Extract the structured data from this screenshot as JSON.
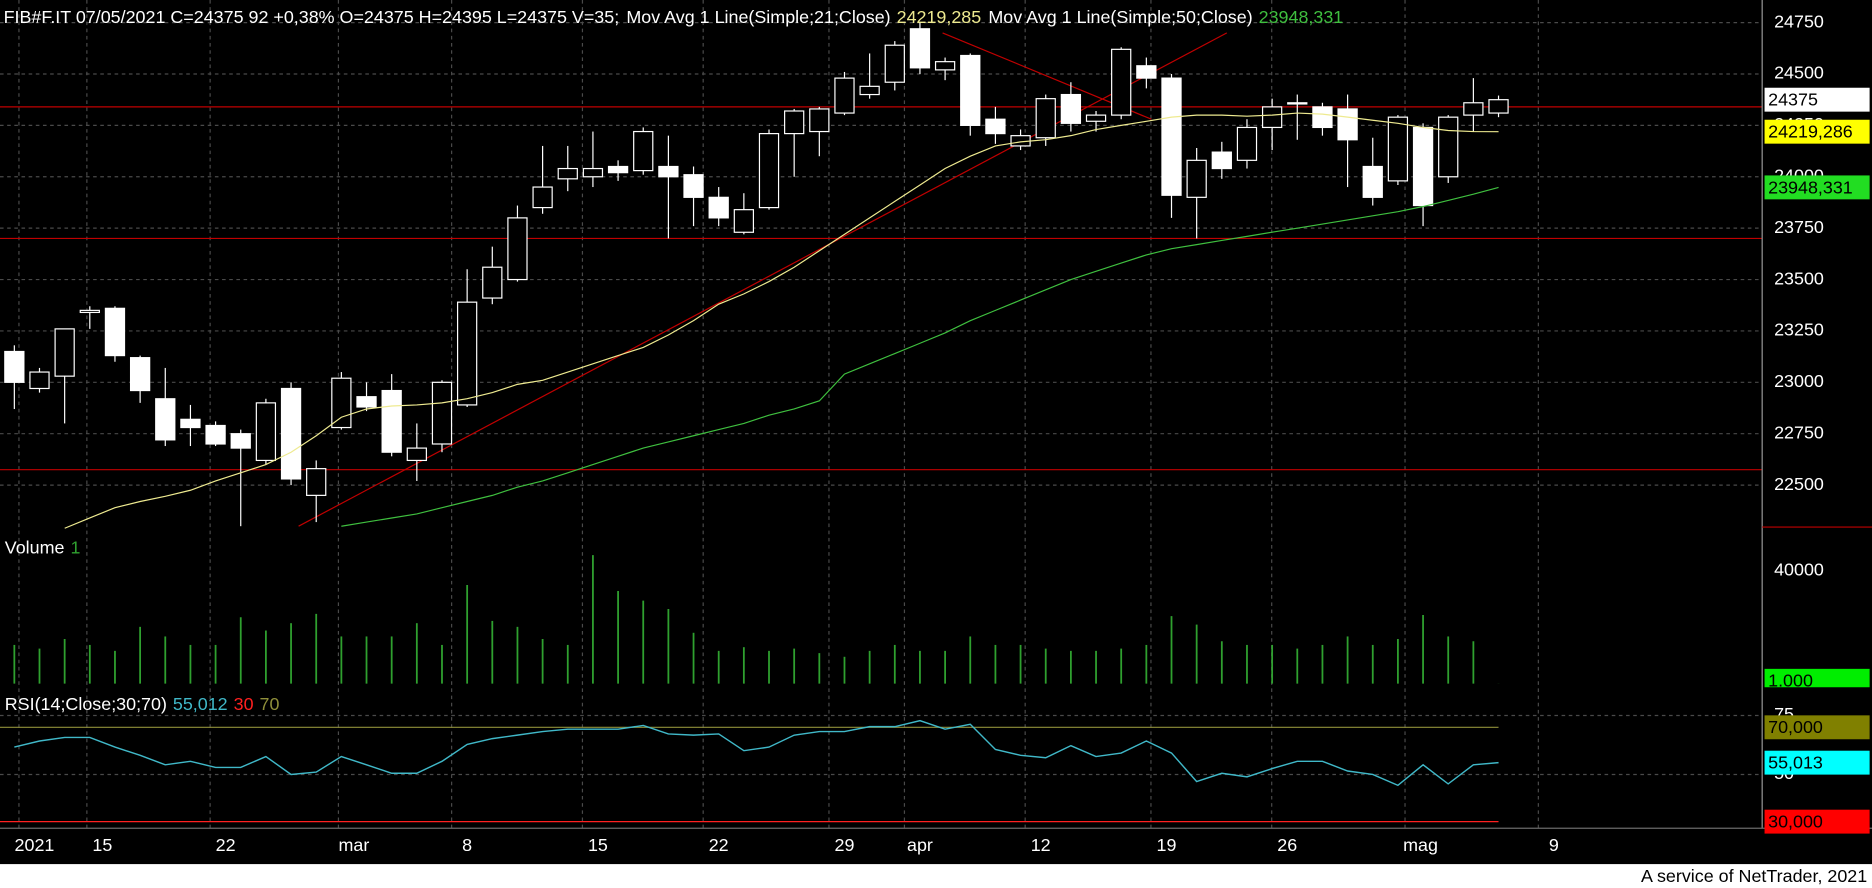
{
  "chart_data": {
    "type": "candlestick",
    "title": "FIB#F.IT 07/05/2021 C=24375 92 +0,38% O=24375 H=24395 L=24375 V=35;",
    "footer": "A service of NetTrader, 2021",
    "x": [
      0,
      1,
      2,
      3,
      4,
      5,
      6,
      7,
      8,
      9,
      10,
      11,
      12,
      13,
      14,
      15,
      16,
      17,
      18,
      19,
      20,
      21,
      22,
      23,
      24,
      25,
      26,
      27,
      28,
      29,
      30,
      31,
      32,
      33,
      34,
      35,
      36,
      37,
      38,
      39,
      40,
      41,
      42,
      43,
      44,
      45,
      46,
      47,
      48,
      49,
      50,
      51,
      52,
      53,
      54,
      55,
      56,
      57,
      58,
      59
    ],
    "open": [
      23150,
      22970,
      23030,
      23340,
      23360,
      23120,
      22920,
      22820,
      22790,
      22750,
      22620,
      22970,
      22450,
      22780,
      22930,
      22960,
      22620,
      22700,
      22890,
      23410,
      23500,
      23850,
      23990,
      24000,
      24050,
      24030,
      24050,
      24010,
      23900,
      23730,
      23850,
      24210,
      24220,
      24310,
      24400,
      24460,
      24720,
      24520,
      24590,
      24280,
      24150,
      24190,
      24400,
      24270,
      24300,
      24540,
      24480,
      23900,
      24120,
      24080,
      24240,
      24360,
      24340,
      24330,
      24050,
      23980,
      24240,
      24000,
      24300,
      24310
    ],
    "high": [
      23180,
      23070,
      23260,
      23370,
      23370,
      23130,
      23070,
      22890,
      22810,
      22770,
      22920,
      23000,
      22620,
      23050,
      23000,
      23040,
      22800,
      23010,
      23550,
      23660,
      23860,
      24150,
      24150,
      24220,
      24080,
      24240,
      24200,
      24050,
      23950,
      23920,
      24230,
      24330,
      24340,
      24510,
      24600,
      24660,
      24750,
      24580,
      24600,
      24340,
      24230,
      24400,
      24460,
      24320,
      24630,
      24580,
      24500,
      24140,
      24170,
      24280,
      24380,
      24400,
      24360,
      24400,
      24190,
      24300,
      24260,
      24300,
      24480,
      24395
    ],
    "low": [
      22870,
      22950,
      22800,
      23260,
      23100,
      22900,
      22690,
      22690,
      22690,
      22300,
      22600,
      22500,
      22320,
      22770,
      22860,
      22640,
      22520,
      22660,
      22880,
      23380,
      23490,
      23820,
      23930,
      23950,
      23980,
      24010,
      23700,
      23760,
      23760,
      23720,
      23840,
      24000,
      24100,
      24300,
      24380,
      24420,
      24500,
      24470,
      24200,
      24160,
      24130,
      24150,
      24220,
      24220,
      24280,
      24430,
      23800,
      23700,
      23990,
      24040,
      24130,
      24180,
      24200,
      23950,
      23860,
      23960,
      23760,
      23970,
      24220,
      24290
    ],
    "close": [
      23000,
      23050,
      23260,
      23350,
      23130,
      22960,
      22720,
      22780,
      22700,
      22680,
      22900,
      22530,
      22580,
      23020,
      22880,
      22660,
      22680,
      23000,
      23390,
      23560,
      23800,
      23950,
      24040,
      24040,
      24020,
      24220,
      24000,
      23900,
      23800,
      23840,
      24210,
      24320,
      24330,
      24480,
      24440,
      24640,
      24530,
      24560,
      24250,
      24210,
      24200,
      24380,
      24260,
      24300,
      24620,
      24480,
      23910,
      24080,
      24040,
      24240,
      24340,
      24360,
      24240,
      24180,
      23900,
      24290,
      23860,
      24290,
      24360,
      24375
    ],
    "color": "#ffffff",
    "xlim": [
      -0.57,
      69.48
    ],
    "xticks": [
      {
        "value": 0.8,
        "label": "2021"
      },
      {
        "value": 3.5,
        "label": "15"
      },
      {
        "value": 8.4,
        "label": "22"
      },
      {
        "value": 13.5,
        "label": "mar"
      },
      {
        "value": 18,
        "label": "8"
      },
      {
        "value": 23.2,
        "label": "15"
      },
      {
        "value": 28,
        "label": "22"
      },
      {
        "value": 33,
        "label": "29"
      },
      {
        "value": 36,
        "label": "apr"
      },
      {
        "value": 40.8,
        "label": "12"
      },
      {
        "value": 45.8,
        "label": "19"
      },
      {
        "value": 50.6,
        "label": "26"
      },
      {
        "value": 55.9,
        "label": "mag"
      },
      {
        "value": 61.2,
        "label": "9"
      }
    ],
    "ylim": [
      22290,
      24860
    ],
    "yticks": [
      22500,
      22750,
      23000,
      23250,
      23500,
      23750,
      24000,
      24250,
      24500,
      24750
    ],
    "grid": true,
    "series": [
      {
        "name": "Mov Avg 1 Line(Simple;21;Close)",
        "color": "#eeea90",
        "last_label": "24219,285",
        "values": [
          null,
          null,
          22290,
          22340,
          22390,
          22420,
          22445,
          22475,
          22520,
          22560,
          22600,
          22660,
          22740,
          22830,
          22870,
          22885,
          22890,
          22900,
          22920,
          22950,
          22990,
          23010,
          23050,
          23090,
          23130,
          23170,
          23230,
          23300,
          23380,
          23430,
          23490,
          23560,
          23640,
          23720,
          23800,
          23880,
          23960,
          24040,
          24100,
          24150,
          24170,
          24180,
          24200,
          24230,
          24250,
          24270,
          24290,
          24300,
          24300,
          24295,
          24300,
          24310,
          24305,
          24290,
          24275,
          24260,
          24240,
          24225,
          24220,
          24219.285
        ]
      },
      {
        "name": "Mov Avg 1 Line(Simple;50;Close)",
        "color": "#3fbf3f",
        "last_label": "23948,331",
        "values": [
          null,
          null,
          null,
          null,
          null,
          null,
          null,
          null,
          null,
          null,
          null,
          null,
          null,
          22300,
          22320,
          22340,
          22360,
          22390,
          22420,
          22450,
          22490,
          22520,
          22560,
          22600,
          22640,
          22680,
          22710,
          22740,
          22770,
          22800,
          22840,
          22870,
          22910,
          23040,
          23090,
          23140,
          23190,
          23240,
          23300,
          23350,
          23400,
          23450,
          23500,
          23540,
          23580,
          23620,
          23650,
          23670,
          23690,
          23710,
          23730,
          23750,
          23770,
          23790,
          23810,
          23830,
          23855,
          23885,
          23915,
          23948.331
        ]
      }
    ],
    "hlines": [
      {
        "value": 24340,
        "color": "#c00000"
      },
      {
        "value": 23700,
        "color": "#c00000"
      },
      {
        "value": 22575,
        "color": "#c00000"
      }
    ],
    "trendlines": [
      {
        "x": [
          11.3,
          48.2
        ],
        "y": [
          22300,
          24700
        ],
        "color": "#c00000"
      },
      {
        "x": [
          36.9,
          45.2
        ],
        "y": [
          24700,
          24280
        ],
        "color": "#c00000"
      }
    ],
    "price_labels": [
      {
        "value": 24375,
        "label": "24375",
        "color": "#ffffff"
      },
      {
        "value": 24219.286,
        "label": "24219,286",
        "color": "#ffff00"
      },
      {
        "value": 23948.331,
        "label": "23948,331",
        "color": "#22dd22"
      }
    ],
    "volume": {
      "title": "Volume",
      "param": "1",
      "color": "#2fa02f",
      "values": [
        13700,
        12400,
        15800,
        13700,
        11600,
        20100,
        16700,
        13700,
        13700,
        23500,
        18800,
        21400,
        24700,
        16700,
        16700,
        16700,
        21400,
        13700,
        34900,
        22200,
        20100,
        15800,
        13700,
        45500,
        32800,
        29400,
        26400,
        18000,
        11600,
        12900,
        11600,
        12400,
        10800,
        9500,
        11600,
        13700,
        11600,
        11600,
        16700,
        13700,
        13700,
        12400,
        11600,
        11600,
        12400,
        13700,
        23900,
        20900,
        15000,
        13700,
        13700,
        12400,
        13700,
        16700,
        13700,
        15800,
        24300,
        16700,
        15000,
        35
      ],
      "ylim": [
        0,
        55000
      ],
      "yticks": [
        40000
      ],
      "box": {
        "value": 1000,
        "label": "1.000",
        "color": "#00ee00"
      }
    },
    "rsi": {
      "title": "RSI(14;Close;30;70)",
      "color": "#40b8c8",
      "last_label": "55,012",
      "values": [
        61.6,
        64.2,
        65.7,
        65.7,
        61.6,
        58.1,
        54.1,
        55.6,
        53.0,
        53.0,
        57.6,
        50.0,
        51.0,
        57.6,
        54.1,
        50.5,
        50.5,
        55.6,
        62.7,
        65.2,
        66.7,
        68.2,
        69.2,
        69.2,
        69.2,
        70.8,
        67.2,
        66.7,
        67.2,
        60.1,
        61.6,
        66.7,
        68.2,
        68.2,
        70.3,
        70.3,
        72.8,
        69.2,
        71.3,
        60.6,
        58.1,
        57.1,
        62.2,
        57.6,
        59.1,
        64.2,
        59.1,
        47.0,
        50.5,
        49.0,
        52.5,
        55.6,
        55.6,
        51.5,
        50.0,
        45.4,
        54.1,
        46.0,
        54.1,
        55.012
      ],
      "ylim": [
        27.2,
        87
      ],
      "yticks": [
        75,
        50
      ],
      "levels": [
        {
          "value": 30,
          "color": "#ff2020"
        },
        {
          "value": 70,
          "color": "#8f8f3a"
        }
      ],
      "boxes": [
        {
          "value": 70,
          "label": "70,000",
          "color": "#808000"
        },
        {
          "value": 55.013,
          "label": "55,013",
          "color": "#00ffff"
        },
        {
          "value": 30,
          "label": "30,000",
          "color": "#ff0000"
        }
      ]
    }
  }
}
